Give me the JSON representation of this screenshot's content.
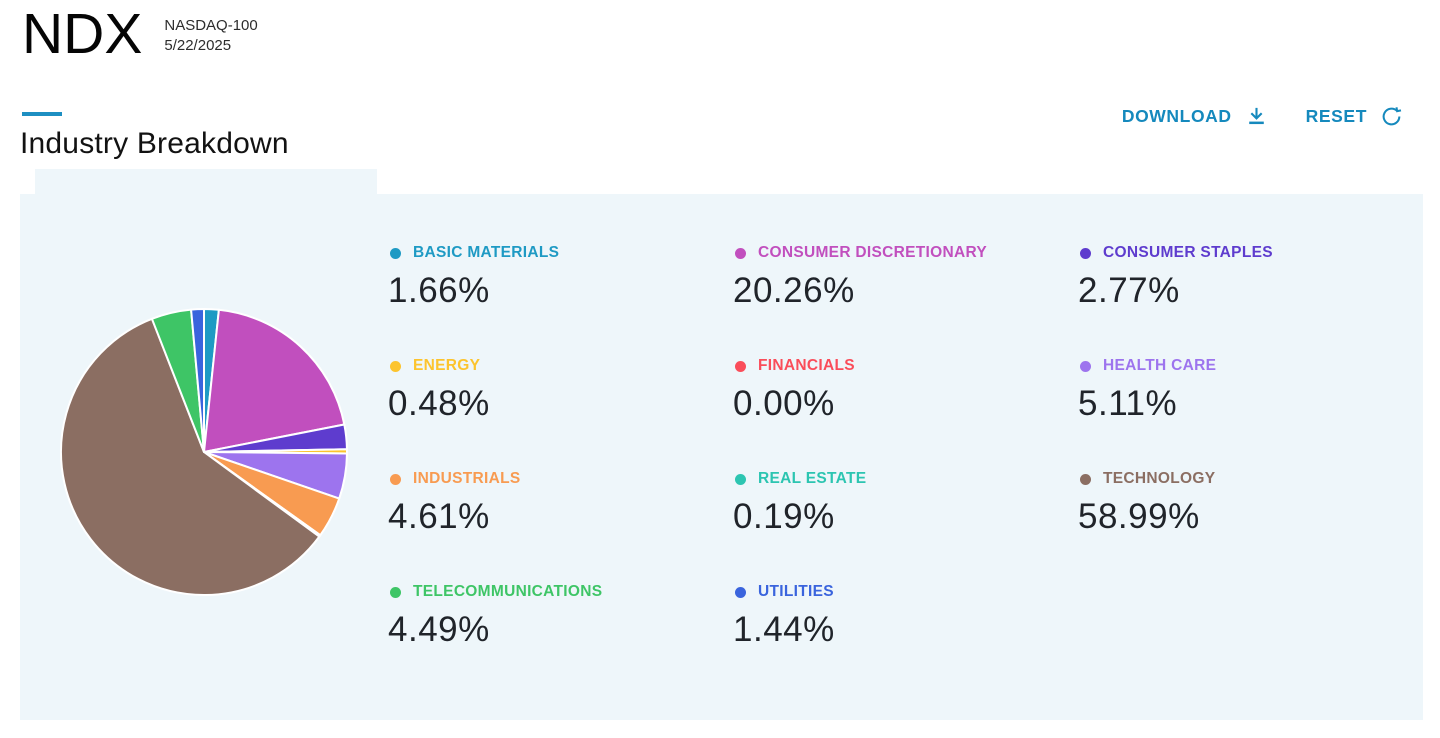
{
  "header": {
    "ticker": "NDX",
    "index_name": "NASDAQ-100",
    "date": "5/22/2025"
  },
  "section": {
    "title": "Industry Breakdown"
  },
  "actions": {
    "download_label": "DOWNLOAD",
    "reset_label": "RESET",
    "accent_color": "#1589bd"
  },
  "icons": {
    "download": "download-icon",
    "reset": "refresh-icon"
  },
  "chart_data": {
    "type": "pie",
    "title": "Industry Breakdown",
    "unit": "%",
    "start_angle_deg": 0,
    "direction": "clockwise",
    "legend_position": "right",
    "legend_columns": 3,
    "slice_border_color": "#ffffff",
    "panel_background": "#eef6fa",
    "series": [
      {
        "label": "BASIC MATERIALS",
        "value": 1.66,
        "display": "1.66%",
        "color": "#1e9ac4"
      },
      {
        "label": "CONSUMER DISCRETIONARY",
        "value": 20.26,
        "display": "20.26%",
        "color": "#c14fbe"
      },
      {
        "label": "CONSUMER STAPLES",
        "value": 2.77,
        "display": "2.77%",
        "color": "#5e3cce"
      },
      {
        "label": "ENERGY",
        "value": 0.48,
        "display": "0.48%",
        "color": "#fcc42e"
      },
      {
        "label": "FINANCIALS",
        "value": 0.0,
        "display": "0.00%",
        "color": "#fa4d5a"
      },
      {
        "label": "HEALTH CARE",
        "value": 5.11,
        "display": "5.11%",
        "color": "#9d74ee"
      },
      {
        "label": "INDUSTRIALS",
        "value": 4.61,
        "display": "4.61%",
        "color": "#f89b51"
      },
      {
        "label": "REAL ESTATE",
        "value": 0.19,
        "display": "0.19%",
        "color": "#2cc5b1"
      },
      {
        "label": "TECHNOLOGY",
        "value": 58.99,
        "display": "58.99%",
        "color": "#8b6e62"
      },
      {
        "label": "TELECOMMUNICATIONS",
        "value": 4.49,
        "display": "4.49%",
        "color": "#3ec566"
      },
      {
        "label": "UTILITIES",
        "value": 1.44,
        "display": "1.44%",
        "color": "#3a64dd"
      }
    ]
  }
}
